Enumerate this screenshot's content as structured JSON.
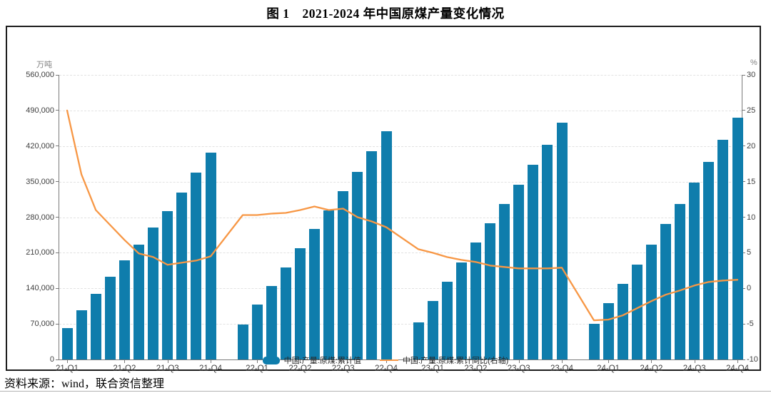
{
  "title": "图 1　2021-2024 年中国原煤产量变化情况",
  "source_note": "资料来源：wind，联合资信整理",
  "colors": {
    "bar": "#0F7DAC",
    "line": "#F79745",
    "grid": "#e2e2e2",
    "axis": "#7a7a7a"
  },
  "legend": [
    {
      "label": "中国:产量:原煤:累计值",
      "type": "bar"
    },
    {
      "label": "中国:产量:原煤:累计同比(右轴)",
      "type": "line"
    }
  ],
  "chart_data": {
    "type": "combo",
    "title": "图 1　2021-2024 年中国原煤产量变化情况",
    "grid": "horizontal-dashed",
    "legend_position": "bottom-center",
    "categories": [
      "2021-02",
      "2021-03",
      "2021-04",
      "2021-05",
      "2021-06",
      "2021-07",
      "2021-08",
      "2021-09",
      "2021-10",
      "2021-11",
      "2021-12",
      "2022-02",
      "2022-03",
      "2022-04",
      "2022-05",
      "2022-06",
      "2022-07",
      "2022-08",
      "2022-09",
      "2022-10",
      "2022-11",
      "2022-12",
      "2023-02",
      "2023-03",
      "2023-04",
      "2023-05",
      "2023-06",
      "2023-07",
      "2023-08",
      "2023-09",
      "2023-10",
      "2023-11",
      "2023-12",
      "2024-02",
      "2024-03",
      "2024-04",
      "2024-05",
      "2024-06",
      "2024-07",
      "2024-08",
      "2024-09",
      "2024-10",
      "2024-11",
      "2024-12"
    ],
    "x_tick_labels": [
      "21-Q1",
      "21-Q2",
      "21-Q3",
      "21-Q4",
      "22-Q1",
      "22-Q2",
      "22-Q3",
      "22-Q4",
      "23-Q1",
      "23-Q2",
      "23-Q3",
      "23-Q4",
      "24-Q1",
      "24-Q2",
      "24-Q3",
      "24-Q4"
    ],
    "left_axis": {
      "label": "万吨",
      "min": 0,
      "max": 560000,
      "tick_step": 70000
    },
    "right_axis": {
      "label": "%",
      "min": -10,
      "max": 30,
      "tick_step": 5
    },
    "series": [
      {
        "name": "中国:产量:原煤:累计值",
        "type": "bar",
        "axis": "left",
        "unit": "万吨",
        "values": [
          61800,
          97100,
          129700,
          162700,
          195300,
          226400,
          259700,
          292100,
          327800,
          367100,
          407100,
          68700,
          108100,
          144800,
          181100,
          219300,
          256300,
          293300,
          331700,
          368800,
          409400,
          449600,
          73400,
          115100,
          153100,
          191600,
          230100,
          267700,
          305700,
          344000,
          383000,
          422400,
          465800,
          70500,
          111200,
          148500,
          186300,
          226600,
          266500,
          305500,
          347700,
          389200,
          432800,
          475900
        ]
      },
      {
        "name": "中国:产量:原煤:累计同比(右轴)",
        "type": "line",
        "axis": "right",
        "unit": "%",
        "values": [
          25.0,
          16.0,
          11.0,
          8.9,
          6.8,
          4.9,
          4.4,
          3.3,
          3.6,
          3.9,
          4.5,
          10.3,
          10.3,
          10.5,
          10.6,
          11.0,
          11.5,
          11.0,
          11.2,
          10.0,
          9.4,
          8.6,
          5.5,
          5.0,
          4.4,
          4.0,
          3.7,
          3.2,
          3.0,
          2.8,
          2.8,
          2.8,
          2.9,
          -4.5,
          -4.4,
          -3.8,
          -2.8,
          -1.8,
          -0.9,
          -0.3,
          0.4,
          0.9,
          1.1,
          1.2
        ]
      }
    ]
  }
}
